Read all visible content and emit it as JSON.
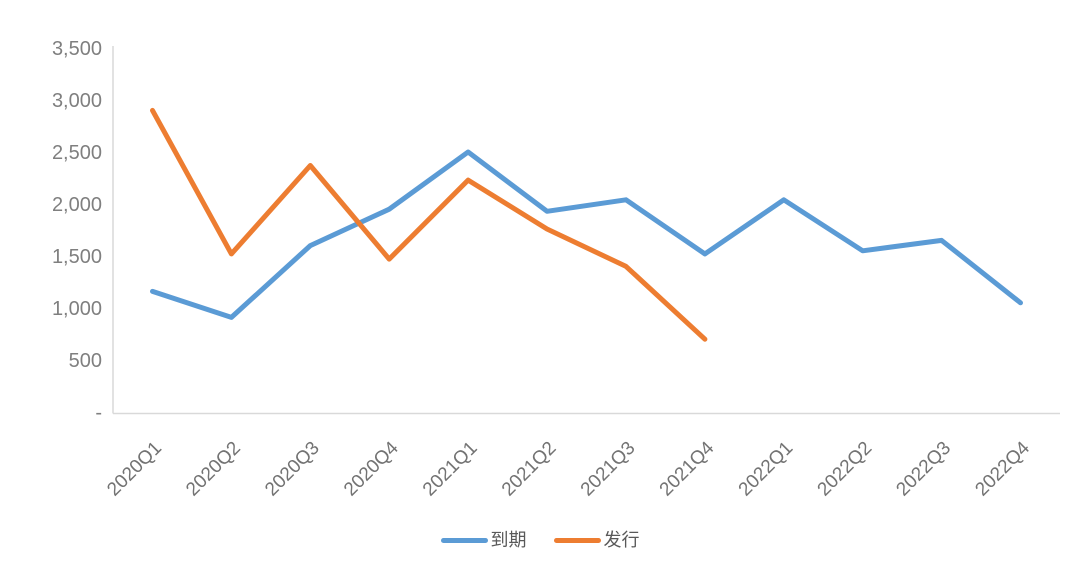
{
  "chart_data": {
    "type": "line",
    "title": "",
    "xlabel": "",
    "ylabel": "",
    "categories": [
      "2020Q1",
      "2020Q2",
      "2020Q3",
      "2020Q4",
      "2021Q1",
      "2021Q2",
      "2021Q3",
      "2021Q4",
      "2022Q1",
      "2022Q2",
      "2022Q3",
      "2022Q4"
    ],
    "series": [
      {
        "name": "到期",
        "color": "#5B9BD5",
        "values": [
          1160,
          910,
          1600,
          1950,
          2500,
          1930,
          2040,
          1520,
          2040,
          1550,
          1650,
          1050
        ]
      },
      {
        "name": "发行",
        "color": "#ED7D31",
        "values": [
          2900,
          1520,
          2370,
          1470,
          2230,
          1760,
          1400,
          700,
          null,
          null,
          null,
          null
        ]
      }
    ],
    "ylim": [
      0,
      3500
    ],
    "y_axis": {
      "ticks": [
        {
          "value": 3500,
          "label": "3,500"
        },
        {
          "value": 3000,
          "label": "3,000"
        },
        {
          "value": 2500,
          "label": "2,500"
        },
        {
          "value": 2000,
          "label": "2,000"
        },
        {
          "value": 1500,
          "label": "1,500"
        },
        {
          "value": 1000,
          "label": "1,000"
        },
        {
          "value": 500,
          "label": "500"
        },
        {
          "value": 0,
          "label": "-"
        }
      ]
    },
    "grid": false,
    "legend_position": "bottom",
    "axis_color": "#D9D9D9"
  }
}
